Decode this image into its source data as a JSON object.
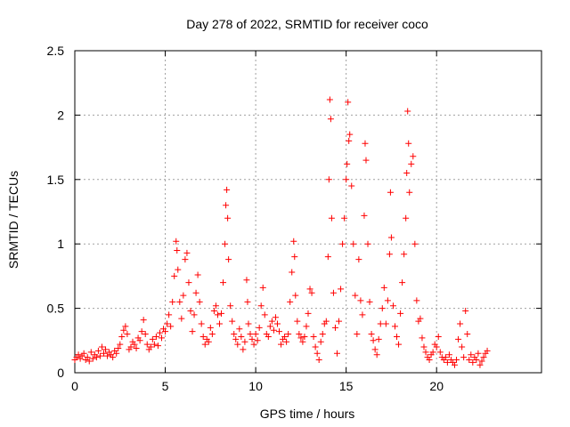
{
  "chart_data": {
    "type": "scatter",
    "title": "Day 278 of 2022, SRMTID for receiver coco",
    "xlabel": "GPS time / hours",
    "ylabel": "SRMTID / TECUs",
    "xlim": [
      0,
      25.8
    ],
    "ylim": [
      0,
      2.5
    ],
    "xticks": [
      0,
      5,
      10,
      15,
      20
    ],
    "xtick_labels": [
      "0",
      "5",
      "10",
      "15",
      "20"
    ],
    "yticks": [
      0,
      0.5,
      1,
      1.5,
      2,
      2.5
    ],
    "ytick_labels": [
      "0",
      "0.5",
      "1",
      "1.5",
      "2",
      "2.5"
    ],
    "grid": true,
    "marker": "+",
    "series": [
      {
        "name": "SRMTID",
        "color": "#ff0000",
        "points": [
          [
            0.0,
            0.1
          ],
          [
            0.1,
            0.12
          ],
          [
            0.2,
            0.14
          ],
          [
            0.3,
            0.11
          ],
          [
            0.4,
            0.13
          ],
          [
            0.5,
            0.15
          ],
          [
            0.6,
            0.1
          ],
          [
            0.7,
            0.12
          ],
          [
            0.8,
            0.09
          ],
          [
            0.9,
            0.16
          ],
          [
            1.0,
            0.11
          ],
          [
            1.1,
            0.14
          ],
          [
            1.2,
            0.12
          ],
          [
            1.3,
            0.17
          ],
          [
            1.4,
            0.13
          ],
          [
            1.5,
            0.2
          ],
          [
            1.6,
            0.15
          ],
          [
            1.7,
            0.18
          ],
          [
            1.8,
            0.13
          ],
          [
            1.9,
            0.16
          ],
          [
            2.0,
            0.14
          ],
          [
            2.1,
            0.12
          ],
          [
            2.2,
            0.17
          ],
          [
            2.3,
            0.15
          ],
          [
            2.4,
            0.19
          ],
          [
            2.5,
            0.22
          ],
          [
            2.6,
            0.28
          ],
          [
            2.7,
            0.33
          ],
          [
            2.8,
            0.36
          ],
          [
            2.9,
            0.3
          ],
          [
            3.0,
            0.18
          ],
          [
            3.1,
            0.2
          ],
          [
            3.2,
            0.24
          ],
          [
            3.3,
            0.22
          ],
          [
            3.4,
            0.19
          ],
          [
            3.5,
            0.27
          ],
          [
            3.6,
            0.25
          ],
          [
            3.7,
            0.32
          ],
          [
            3.8,
            0.41
          ],
          [
            3.9,
            0.3
          ],
          [
            4.0,
            0.22
          ],
          [
            4.1,
            0.18
          ],
          [
            4.2,
            0.2
          ],
          [
            4.3,
            0.26
          ],
          [
            4.4,
            0.22
          ],
          [
            4.5,
            0.28
          ],
          [
            4.6,
            0.21
          ],
          [
            4.7,
            0.31
          ],
          [
            4.8,
            0.27
          ],
          [
            4.9,
            0.34
          ],
          [
            5.0,
            0.32
          ],
          [
            5.1,
            0.38
          ],
          [
            5.2,
            0.45
          ],
          [
            5.3,
            0.36
          ],
          [
            5.4,
            0.55
          ],
          [
            5.5,
            0.75
          ],
          [
            5.6,
            1.02
          ],
          [
            5.65,
            0.95
          ],
          [
            5.7,
            0.8
          ],
          [
            5.8,
            0.55
          ],
          [
            5.9,
            0.42
          ],
          [
            6.0,
            0.6
          ],
          [
            6.1,
            0.88
          ],
          [
            6.2,
            0.93
          ],
          [
            6.3,
            0.7
          ],
          [
            6.4,
            0.48
          ],
          [
            6.5,
            0.32
          ],
          [
            6.6,
            0.45
          ],
          [
            6.7,
            0.62
          ],
          [
            6.8,
            0.76
          ],
          [
            6.9,
            0.55
          ],
          [
            7.0,
            0.38
          ],
          [
            7.1,
            0.28
          ],
          [
            7.2,
            0.22
          ],
          [
            7.3,
            0.26
          ],
          [
            7.4,
            0.24
          ],
          [
            7.5,
            0.35
          ],
          [
            7.6,
            0.3
          ],
          [
            7.7,
            0.48
          ],
          [
            7.8,
            0.52
          ],
          [
            7.9,
            0.45
          ],
          [
            8.0,
            0.38
          ],
          [
            8.1,
            0.46
          ],
          [
            8.2,
            0.7
          ],
          [
            8.3,
            1.0
          ],
          [
            8.35,
            1.3
          ],
          [
            8.4,
            1.42
          ],
          [
            8.45,
            1.2
          ],
          [
            8.5,
            0.88
          ],
          [
            8.6,
            0.52
          ],
          [
            8.7,
            0.4
          ],
          [
            8.8,
            0.3
          ],
          [
            8.9,
            0.26
          ],
          [
            9.0,
            0.22
          ],
          [
            9.1,
            0.34
          ],
          [
            9.2,
            0.28
          ],
          [
            9.3,
            0.18
          ],
          [
            9.4,
            0.24
          ],
          [
            9.5,
            0.72
          ],
          [
            9.55,
            0.55
          ],
          [
            9.6,
            0.38
          ],
          [
            9.7,
            0.3
          ],
          [
            9.8,
            0.26
          ],
          [
            9.9,
            0.22
          ],
          [
            10.0,
            0.3
          ],
          [
            10.1,
            0.25
          ],
          [
            10.2,
            0.35
          ],
          [
            10.3,
            0.52
          ],
          [
            10.4,
            0.66
          ],
          [
            10.5,
            0.45
          ],
          [
            10.6,
            0.3
          ],
          [
            10.7,
            0.28
          ],
          [
            10.8,
            0.36
          ],
          [
            10.9,
            0.4
          ],
          [
            11.0,
            0.33
          ],
          [
            11.1,
            0.43
          ],
          [
            11.2,
            0.38
          ],
          [
            11.3,
            0.32
          ],
          [
            11.4,
            0.22
          ],
          [
            11.5,
            0.26
          ],
          [
            11.6,
            0.28
          ],
          [
            11.7,
            0.24
          ],
          [
            11.8,
            0.3
          ],
          [
            11.9,
            0.55
          ],
          [
            12.0,
            0.78
          ],
          [
            12.1,
            1.02
          ],
          [
            12.15,
            0.9
          ],
          [
            12.2,
            0.6
          ],
          [
            12.3,
            0.4
          ],
          [
            12.4,
            0.3
          ],
          [
            12.5,
            0.27
          ],
          [
            12.6,
            0.24
          ],
          [
            12.7,
            0.28
          ],
          [
            12.8,
            0.36
          ],
          [
            12.9,
            0.46
          ],
          [
            13.0,
            0.65
          ],
          [
            13.1,
            0.62
          ],
          [
            13.2,
            0.28
          ],
          [
            13.3,
            0.2
          ],
          [
            13.4,
            0.15
          ],
          [
            13.5,
            0.1
          ],
          [
            13.6,
            0.24
          ],
          [
            13.7,
            0.3
          ],
          [
            13.8,
            0.38
          ],
          [
            13.9,
            0.4
          ],
          [
            14.0,
            0.9
          ],
          [
            14.05,
            1.5
          ],
          [
            14.1,
            2.12
          ],
          [
            14.15,
            1.97
          ],
          [
            14.2,
            1.2
          ],
          [
            14.3,
            0.62
          ],
          [
            14.4,
            0.35
          ],
          [
            14.5,
            0.15
          ],
          [
            14.6,
            0.4
          ],
          [
            14.7,
            0.65
          ],
          [
            14.8,
            1.0
          ],
          [
            14.9,
            1.2
          ],
          [
            15.0,
            1.5
          ],
          [
            15.05,
            1.62
          ],
          [
            15.1,
            2.1
          ],
          [
            15.15,
            1.8
          ],
          [
            15.2,
            1.85
          ],
          [
            15.3,
            1.45
          ],
          [
            15.4,
            1.0
          ],
          [
            15.5,
            0.6
          ],
          [
            15.6,
            0.3
          ],
          [
            15.7,
            0.88
          ],
          [
            15.8,
            0.56
          ],
          [
            15.9,
            0.45
          ],
          [
            16.0,
            1.22
          ],
          [
            16.05,
            1.78
          ],
          [
            16.1,
            1.65
          ],
          [
            16.2,
            1.0
          ],
          [
            16.3,
            0.55
          ],
          [
            16.4,
            0.3
          ],
          [
            16.5,
            0.25
          ],
          [
            16.6,
            0.18
          ],
          [
            16.7,
            0.14
          ],
          [
            16.8,
            0.26
          ],
          [
            16.9,
            0.38
          ],
          [
            17.0,
            0.5
          ],
          [
            17.1,
            0.66
          ],
          [
            17.2,
            0.38
          ],
          [
            17.3,
            0.56
          ],
          [
            17.4,
            0.92
          ],
          [
            17.45,
            1.4
          ],
          [
            17.5,
            1.05
          ],
          [
            17.6,
            0.52
          ],
          [
            17.7,
            0.36
          ],
          [
            17.8,
            0.28
          ],
          [
            17.9,
            0.22
          ],
          [
            18.0,
            0.46
          ],
          [
            18.1,
            0.7
          ],
          [
            18.2,
            0.92
          ],
          [
            18.3,
            1.2
          ],
          [
            18.35,
            1.55
          ],
          [
            18.4,
            2.03
          ],
          [
            18.45,
            1.78
          ],
          [
            18.5,
            1.4
          ],
          [
            18.6,
            1.62
          ],
          [
            18.7,
            1.68
          ],
          [
            18.8,
            1.0
          ],
          [
            18.9,
            0.56
          ],
          [
            19.0,
            0.4
          ],
          [
            19.1,
            0.42
          ],
          [
            19.2,
            0.27
          ],
          [
            19.3,
            0.2
          ],
          [
            19.4,
            0.16
          ],
          [
            19.5,
            0.12
          ],
          [
            19.6,
            0.1
          ],
          [
            19.7,
            0.14
          ],
          [
            19.8,
            0.16
          ],
          [
            19.9,
            0.22
          ],
          [
            20.0,
            0.2
          ],
          [
            20.1,
            0.28
          ],
          [
            20.2,
            0.16
          ],
          [
            20.3,
            0.12
          ],
          [
            20.4,
            0.1
          ],
          [
            20.5,
            0.12
          ],
          [
            20.6,
            0.08
          ],
          [
            20.7,
            0.14
          ],
          [
            20.8,
            0.1
          ],
          [
            20.9,
            0.08
          ],
          [
            21.0,
            0.06
          ],
          [
            21.1,
            0.1
          ],
          [
            21.2,
            0.26
          ],
          [
            21.3,
            0.38
          ],
          [
            21.4,
            0.2
          ],
          [
            21.5,
            0.12
          ],
          [
            21.6,
            0.48
          ],
          [
            21.7,
            0.3
          ],
          [
            21.8,
            0.1
          ],
          [
            21.9,
            0.14
          ],
          [
            22.0,
            0.08
          ],
          [
            22.1,
            0.12
          ],
          [
            22.2,
            0.1
          ],
          [
            22.3,
            0.15
          ],
          [
            22.4,
            0.06
          ],
          [
            22.5,
            0.09
          ],
          [
            22.6,
            0.12
          ],
          [
            22.7,
            0.15
          ],
          [
            22.8,
            0.17
          ]
        ]
      }
    ]
  }
}
